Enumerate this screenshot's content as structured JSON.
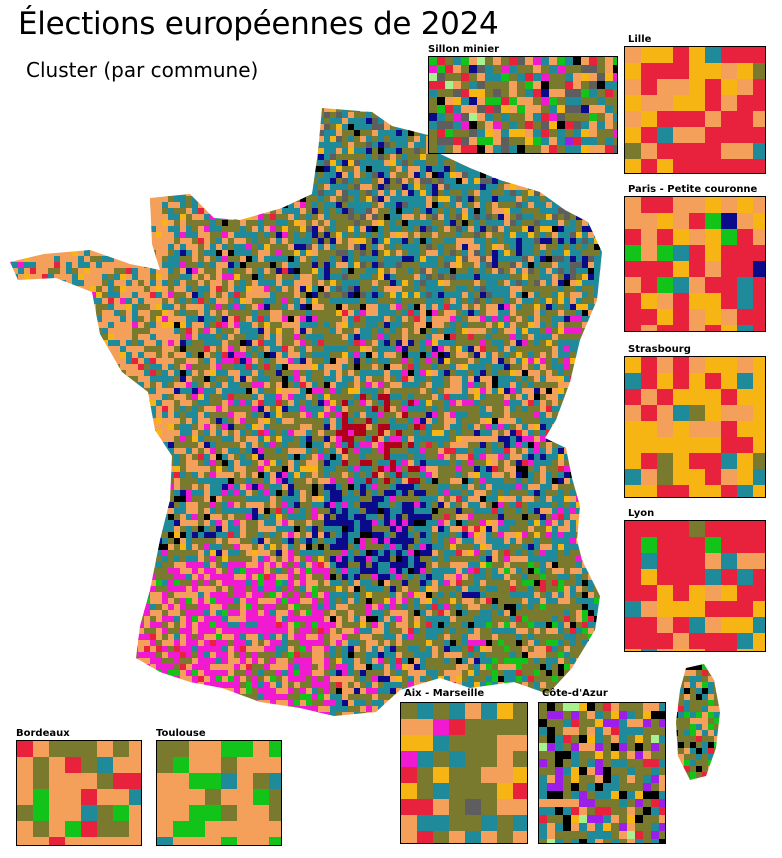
{
  "title": "Élections européennes de 2024",
  "subtitle": "Cluster (par commune)",
  "palette": {
    "orange": "#f5a05a",
    "olive": "#7a7a2e",
    "teal": "#1f8a9a",
    "red": "#e8213c",
    "gold": "#f7b514",
    "magenta": "#f01bd0",
    "navy": "#0a0a8a",
    "green": "#12c41a",
    "gray": "#5e5e5e",
    "purple": "#9b1fe8",
    "black": "#000000",
    "darkred": "#b0001a",
    "lightgreen": "#a8f090",
    "darkgreen": "#1e6e1e"
  },
  "insets": [
    {
      "key": "sillon",
      "label": "Sillon minier",
      "colors": [
        "olive",
        "teal",
        "orange",
        "gray",
        "red",
        "green",
        "gold",
        "magenta",
        "black",
        "lightgreen",
        "navy",
        "purple"
      ]
    },
    {
      "key": "lille",
      "label": "Lille",
      "colors": [
        "red",
        "gold",
        "orange",
        "olive",
        "teal"
      ]
    },
    {
      "key": "paris",
      "label": "Paris - Petite couronne",
      "colors": [
        "red",
        "orange",
        "gold",
        "teal",
        "green",
        "navy",
        "olive"
      ]
    },
    {
      "key": "strasbourg",
      "label": "Strasbourg",
      "colors": [
        "gold",
        "red",
        "orange",
        "teal",
        "olive"
      ]
    },
    {
      "key": "lyon",
      "label": "Lyon",
      "colors": [
        "red",
        "gold",
        "orange",
        "green",
        "teal",
        "olive"
      ]
    },
    {
      "key": "aix",
      "label": "Aix - Marseille",
      "colors": [
        "olive",
        "orange",
        "teal",
        "gold",
        "red",
        "gray",
        "magenta"
      ]
    },
    {
      "key": "cote",
      "label": "Côte-d'Azur",
      "colors": [
        "olive",
        "teal",
        "orange",
        "black",
        "purple",
        "gold",
        "red",
        "lightgreen",
        "green"
      ]
    },
    {
      "key": "bordeaux",
      "label": "Bordeaux",
      "colors": [
        "orange",
        "olive",
        "red",
        "green",
        "teal"
      ]
    },
    {
      "key": "toulouse",
      "label": "Toulouse",
      "colors": [
        "orange",
        "green",
        "olive",
        "teal"
      ]
    }
  ]
}
